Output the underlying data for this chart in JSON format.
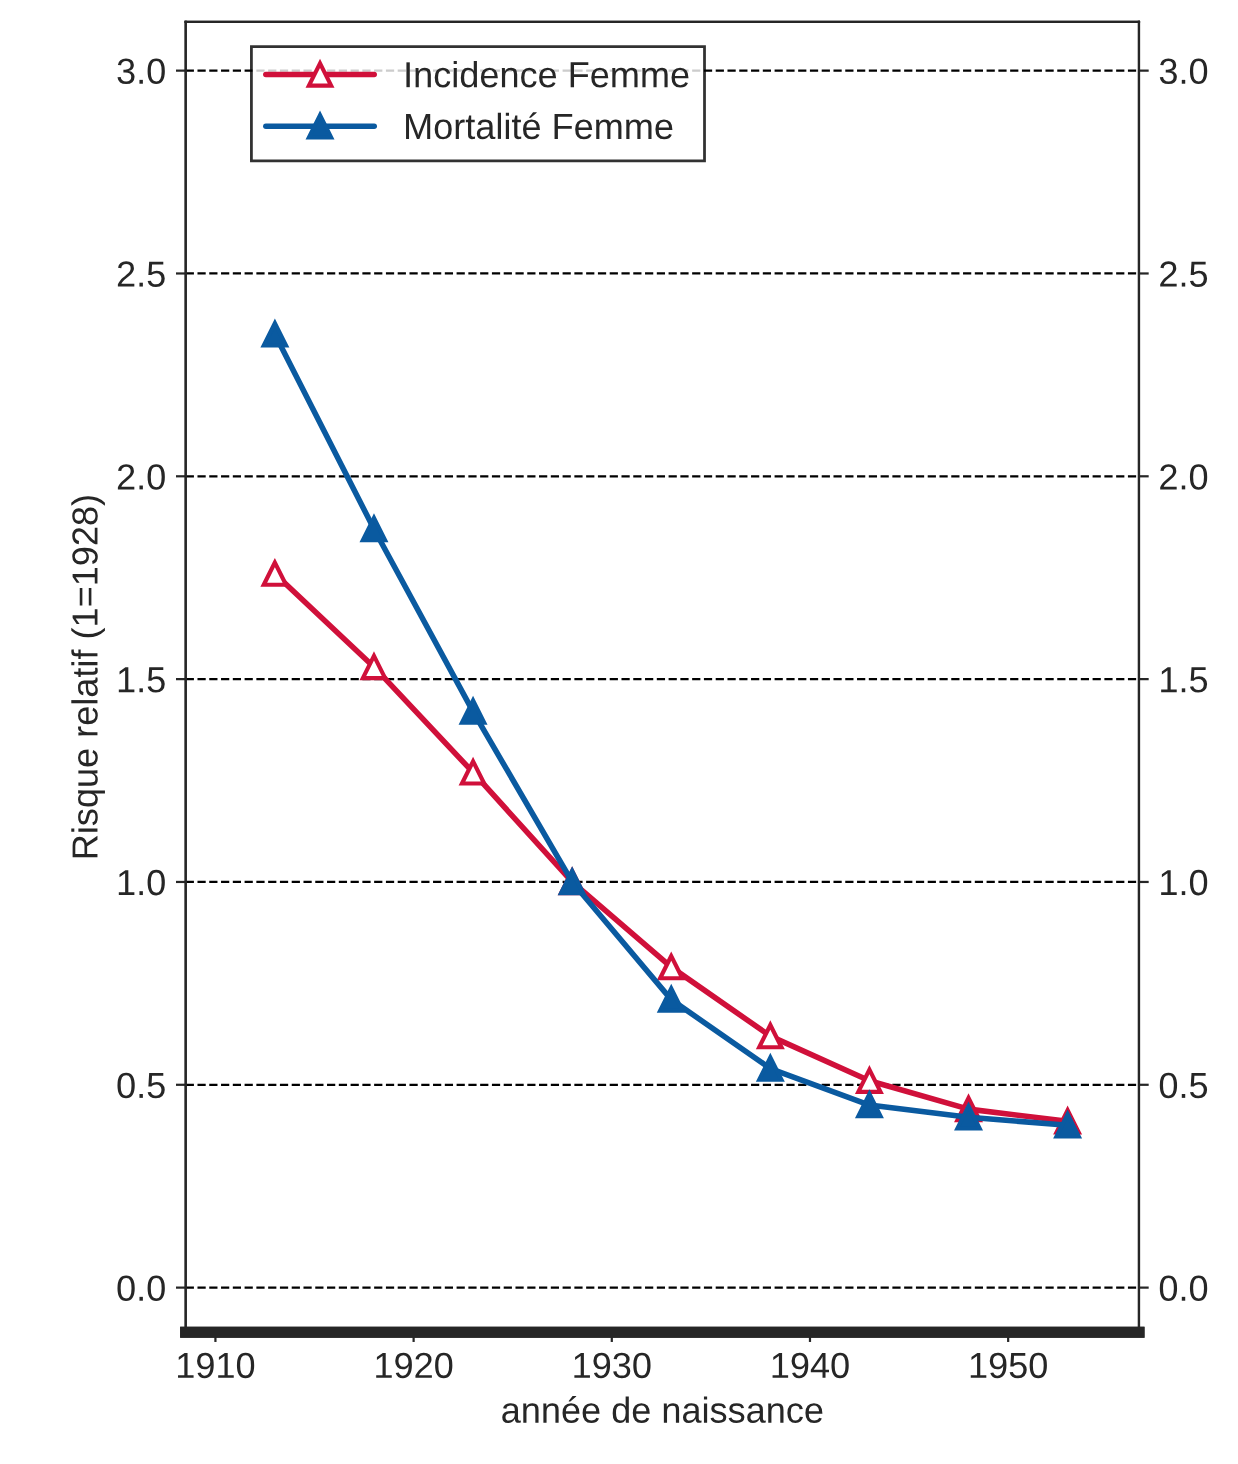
{
  "chart_data": {
    "type": "line",
    "xlabel": "année de naissance",
    "ylabel": "Risque relatif (1=1928)",
    "x": [
      1913,
      1918,
      1923,
      1928,
      1933,
      1938,
      1943,
      1948,
      1953
    ],
    "series": [
      {
        "name": "Incidence Femme",
        "color": "#d0103a",
        "values": [
          1.76,
          1.53,
          1.27,
          1.0,
          0.79,
          0.62,
          0.51,
          0.44,
          0.41
        ]
      },
      {
        "name": "Mortalité Femme",
        "color": "#0a5aa0",
        "values": [
          2.35,
          1.87,
          1.42,
          1.0,
          0.71,
          0.54,
          0.45,
          0.42,
          0.4
        ]
      }
    ],
    "xlim": [
      1908.5,
      1956.6
    ],
    "xticks": [
      1910,
      1920,
      1930,
      1940,
      1950
    ],
    "ylim": [
      -0.11,
      3.12
    ],
    "yticks": [
      {
        "value": 0,
        "label": "0.0"
      },
      {
        "value": 0.5,
        "label": "0.5"
      },
      {
        "value": 1,
        "label": "1.0"
      },
      {
        "value": 1.5,
        "label": "1.5"
      },
      {
        "value": 2,
        "label": "2.0"
      },
      {
        "value": 2.5,
        "label": "2.5"
      },
      {
        "value": 3,
        "label": "3.0"
      }
    ],
    "y2lim": [
      -0.11,
      3.12
    ],
    "y2ticks": [
      {
        "value": 0,
        "label": "0.0"
      },
      {
        "value": 0.5,
        "label": "0.5"
      },
      {
        "value": 1,
        "label": "1.0"
      },
      {
        "value": 1.5,
        "label": "1.5"
      },
      {
        "value": 2,
        "label": "2.0"
      },
      {
        "value": 2.5,
        "label": "2.5"
      },
      {
        "value": 3,
        "label": "3.0"
      }
    ],
    "grid": "y",
    "legend": "top left",
    "marker": "triangle",
    "line_style": "solid"
  }
}
